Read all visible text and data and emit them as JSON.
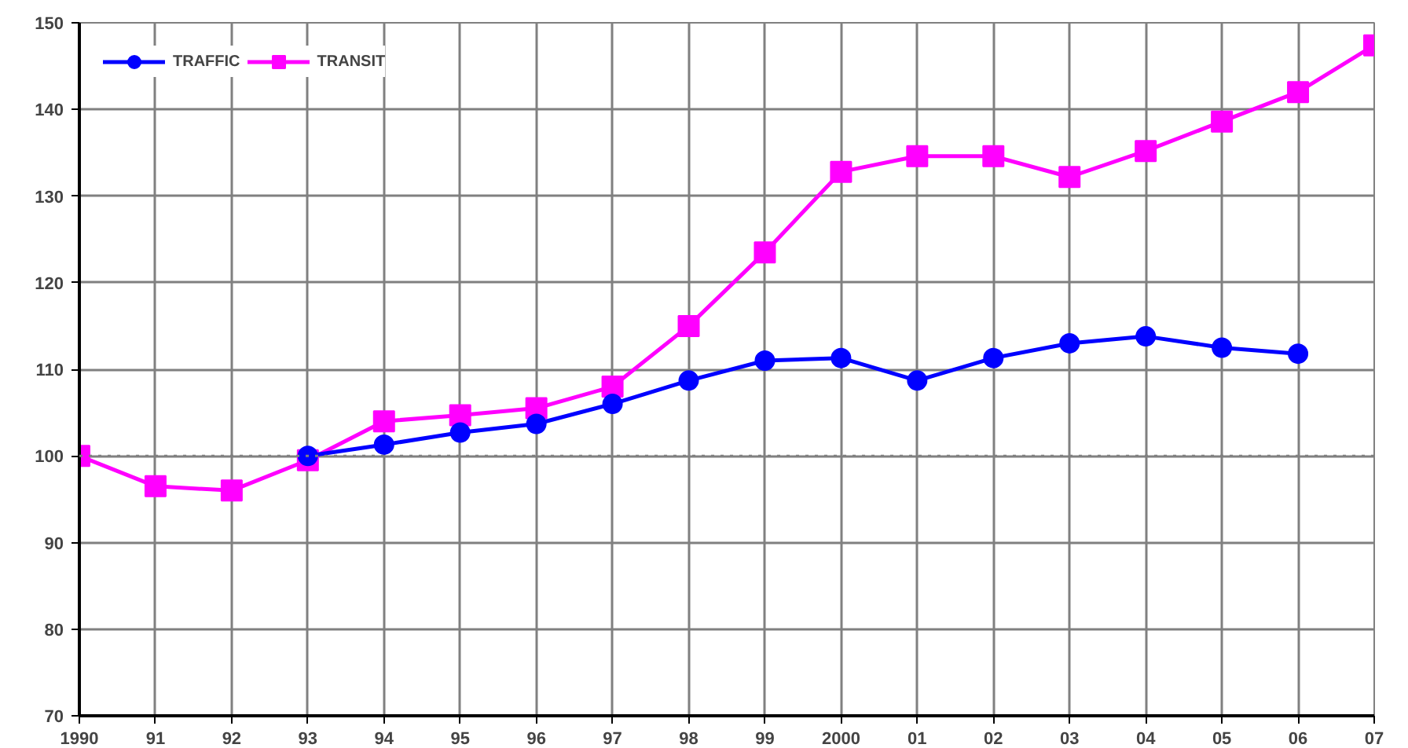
{
  "chart_data": {
    "type": "line",
    "categories": [
      "1990",
      "91",
      "92",
      "93",
      "94",
      "95",
      "96",
      "97",
      "98",
      "99",
      "2000",
      "01",
      "02",
      "03",
      "04",
      "05",
      "06",
      "07"
    ],
    "series": [
      {
        "name": "TRAFFIC",
        "color": "#0000ff",
        "marker": "circle",
        "values": [
          null,
          null,
          null,
          100,
          101.3,
          102.7,
          103.7,
          106,
          108.7,
          111,
          111.3,
          108.7,
          111.3,
          113,
          113.8,
          112.5,
          111.8,
          null
        ]
      },
      {
        "name": "TRANSIT",
        "color": "#ff00ff",
        "marker": "square",
        "values": [
          100,
          96.5,
          96,
          99.5,
          104,
          104.7,
          105.5,
          108,
          115,
          123.5,
          132.8,
          134.6,
          134.6,
          132.2,
          135.2,
          138.6,
          142,
          147.4
        ]
      }
    ],
    "ylim": [
      70,
      150
    ],
    "yticks": [
      70,
      80,
      90,
      100,
      110,
      120,
      130,
      140,
      150
    ],
    "ref_lines": [
      {
        "axis": "y",
        "value": 100,
        "color": "#808080",
        "line_style": "dotted"
      }
    ],
    "grid": true,
    "legend": "top left",
    "line_style": "solid"
  }
}
